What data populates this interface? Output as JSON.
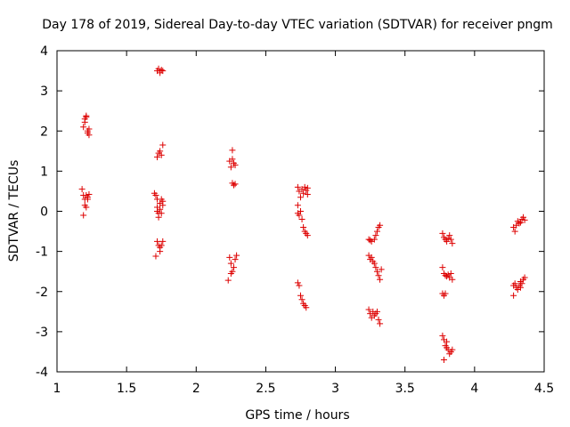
{
  "chart_data": {
    "type": "scatter",
    "title": "Day 178 of 2019, Sidereal Day-to-day VTEC variation (SDTVAR) for receiver pngm",
    "xlabel": "GPS time / hours",
    "ylabel": "SDTVAR / TECUs",
    "xlim": [
      1,
      4.5
    ],
    "ylim": [
      -4,
      4
    ],
    "xticks": [
      "1",
      "1.5",
      "2",
      "2.5",
      "3",
      "3.5",
      "4",
      "4.5"
    ],
    "yticks": [
      "4",
      "3",
      "2",
      "1",
      "0",
      "-1",
      "-2",
      "-3",
      "-4"
    ],
    "grid": false,
    "marker": "+",
    "colors": {
      "points": "#dd0000",
      "axes": "#000000"
    },
    "series": [
      {
        "name": "SDTVAR",
        "points": [
          [
            1.19,
            2.1
          ],
          [
            1.2,
            2.3
          ],
          [
            1.2,
            2.22
          ],
          [
            1.21,
            2.35
          ],
          [
            1.21,
            2.38
          ],
          [
            1.22,
            2.0
          ],
          [
            1.22,
            1.95
          ],
          [
            1.23,
            1.9
          ],
          [
            1.23,
            2.05
          ],
          [
            1.18,
            0.55
          ],
          [
            1.19,
            0.4
          ],
          [
            1.2,
            0.3
          ],
          [
            1.2,
            0.15
          ],
          [
            1.21,
            0.1
          ],
          [
            1.21,
            0.4
          ],
          [
            1.22,
            0.35
          ],
          [
            1.22,
            0.3
          ],
          [
            1.23,
            0.42
          ],
          [
            1.19,
            -0.1
          ],
          [
            1.72,
            3.5
          ],
          [
            1.73,
            3.55
          ],
          [
            1.74,
            3.45
          ],
          [
            1.75,
            3.52
          ],
          [
            1.76,
            3.5
          ],
          [
            1.72,
            1.35
          ],
          [
            1.73,
            1.45
          ],
          [
            1.74,
            1.5
          ],
          [
            1.75,
            1.4
          ],
          [
            1.76,
            1.65
          ],
          [
            1.7,
            0.45
          ],
          [
            1.71,
            0.4
          ],
          [
            1.72,
            0.3
          ],
          [
            1.72,
            0.1
          ],
          [
            1.72,
            0.0
          ],
          [
            1.73,
            -0.05
          ],
          [
            1.73,
            -0.15
          ],
          [
            1.74,
            0.2
          ],
          [
            1.74,
            0.05
          ],
          [
            1.75,
            0.3
          ],
          [
            1.75,
            -0.05
          ],
          [
            1.76,
            0.15
          ],
          [
            1.76,
            0.25
          ],
          [
            1.72,
            -0.75
          ],
          [
            1.73,
            -0.85
          ],
          [
            1.74,
            -0.9
          ],
          [
            1.74,
            -1.0
          ],
          [
            1.75,
            -0.85
          ],
          [
            1.76,
            -0.75
          ],
          [
            1.71,
            -1.12
          ],
          [
            2.24,
            1.25
          ],
          [
            2.25,
            1.1
          ],
          [
            2.26,
            1.52
          ],
          [
            2.26,
            1.3
          ],
          [
            2.27,
            1.2
          ],
          [
            2.28,
            1.15
          ],
          [
            2.26,
            0.7
          ],
          [
            2.27,
            0.65
          ],
          [
            2.28,
            0.68
          ],
          [
            2.24,
            -1.15
          ],
          [
            2.25,
            -1.3
          ],
          [
            2.26,
            -1.5
          ],
          [
            2.27,
            -1.4
          ],
          [
            2.28,
            -1.2
          ],
          [
            2.29,
            -1.1
          ],
          [
            2.23,
            -1.72
          ],
          [
            2.25,
            -1.55
          ],
          [
            2.73,
            0.6
          ],
          [
            2.74,
            0.5
          ],
          [
            2.75,
            0.35
          ],
          [
            2.76,
            0.55
          ],
          [
            2.77,
            0.45
          ],
          [
            2.78,
            0.6
          ],
          [
            2.79,
            0.52
          ],
          [
            2.8,
            0.42
          ],
          [
            2.8,
            0.58
          ],
          [
            2.73,
            0.15
          ],
          [
            2.73,
            -0.05
          ],
          [
            2.74,
            -0.1
          ],
          [
            2.75,
            0.0
          ],
          [
            2.76,
            -0.2
          ],
          [
            2.77,
            -0.4
          ],
          [
            2.78,
            -0.5
          ],
          [
            2.79,
            -0.55
          ],
          [
            2.8,
            -0.6
          ],
          [
            2.73,
            -1.78
          ],
          [
            2.74,
            -1.85
          ],
          [
            2.75,
            -2.1
          ],
          [
            2.76,
            -2.2
          ],
          [
            2.77,
            -2.3
          ],
          [
            2.78,
            -2.35
          ],
          [
            2.79,
            -2.4
          ],
          [
            3.24,
            -0.7
          ],
          [
            3.25,
            -0.72
          ],
          [
            3.26,
            -0.75
          ],
          [
            3.28,
            -0.7
          ],
          [
            3.29,
            -0.6
          ],
          [
            3.3,
            -0.5
          ],
          [
            3.31,
            -0.4
          ],
          [
            3.32,
            -0.35
          ],
          [
            3.24,
            -1.1
          ],
          [
            3.25,
            -1.2
          ],
          [
            3.26,
            -1.15
          ],
          [
            3.27,
            -1.25
          ],
          [
            3.28,
            -1.3
          ],
          [
            3.29,
            -1.4
          ],
          [
            3.3,
            -1.5
          ],
          [
            3.31,
            -1.6
          ],
          [
            3.32,
            -1.7
          ],
          [
            3.33,
            -1.45
          ],
          [
            3.24,
            -2.45
          ],
          [
            3.25,
            -2.55
          ],
          [
            3.26,
            -2.65
          ],
          [
            3.27,
            -2.5
          ],
          [
            3.28,
            -2.6
          ],
          [
            3.29,
            -2.55
          ],
          [
            3.3,
            -2.5
          ],
          [
            3.31,
            -2.7
          ],
          [
            3.32,
            -2.8
          ],
          [
            3.77,
            -0.55
          ],
          [
            3.78,
            -0.65
          ],
          [
            3.79,
            -0.7
          ],
          [
            3.8,
            -0.75
          ],
          [
            3.81,
            -0.68
          ],
          [
            3.82,
            -0.6
          ],
          [
            3.83,
            -0.7
          ],
          [
            3.84,
            -0.8
          ],
          [
            3.77,
            -1.4
          ],
          [
            3.78,
            -1.55
          ],
          [
            3.79,
            -1.6
          ],
          [
            3.8,
            -1.62
          ],
          [
            3.81,
            -1.58
          ],
          [
            3.82,
            -1.65
          ],
          [
            3.83,
            -1.55
          ],
          [
            3.84,
            -1.7
          ],
          [
            3.77,
            -2.05
          ],
          [
            3.78,
            -2.1
          ],
          [
            3.79,
            -2.05
          ],
          [
            3.77,
            -3.1
          ],
          [
            3.78,
            -3.2
          ],
          [
            3.79,
            -3.35
          ],
          [
            3.8,
            -3.4
          ],
          [
            3.81,
            -3.45
          ],
          [
            3.82,
            -3.55
          ],
          [
            3.83,
            -3.5
          ],
          [
            3.84,
            -3.45
          ],
          [
            3.78,
            -3.7
          ],
          [
            3.8,
            -3.25
          ],
          [
            4.28,
            -0.4
          ],
          [
            4.3,
            -0.35
          ],
          [
            4.31,
            -0.25
          ],
          [
            4.32,
            -0.3
          ],
          [
            4.33,
            -0.28
          ],
          [
            4.34,
            -0.2
          ],
          [
            4.35,
            -0.15
          ],
          [
            4.36,
            -0.22
          ],
          [
            4.29,
            -0.5
          ],
          [
            4.28,
            -1.85
          ],
          [
            4.29,
            -1.8
          ],
          [
            4.3,
            -1.9
          ],
          [
            4.31,
            -1.95
          ],
          [
            4.32,
            -1.85
          ],
          [
            4.33,
            -1.9
          ],
          [
            4.34,
            -1.8
          ],
          [
            4.35,
            -1.7
          ],
          [
            4.36,
            -1.65
          ],
          [
            4.28,
            -2.1
          ],
          [
            4.33,
            -1.75
          ]
        ]
      }
    ]
  }
}
